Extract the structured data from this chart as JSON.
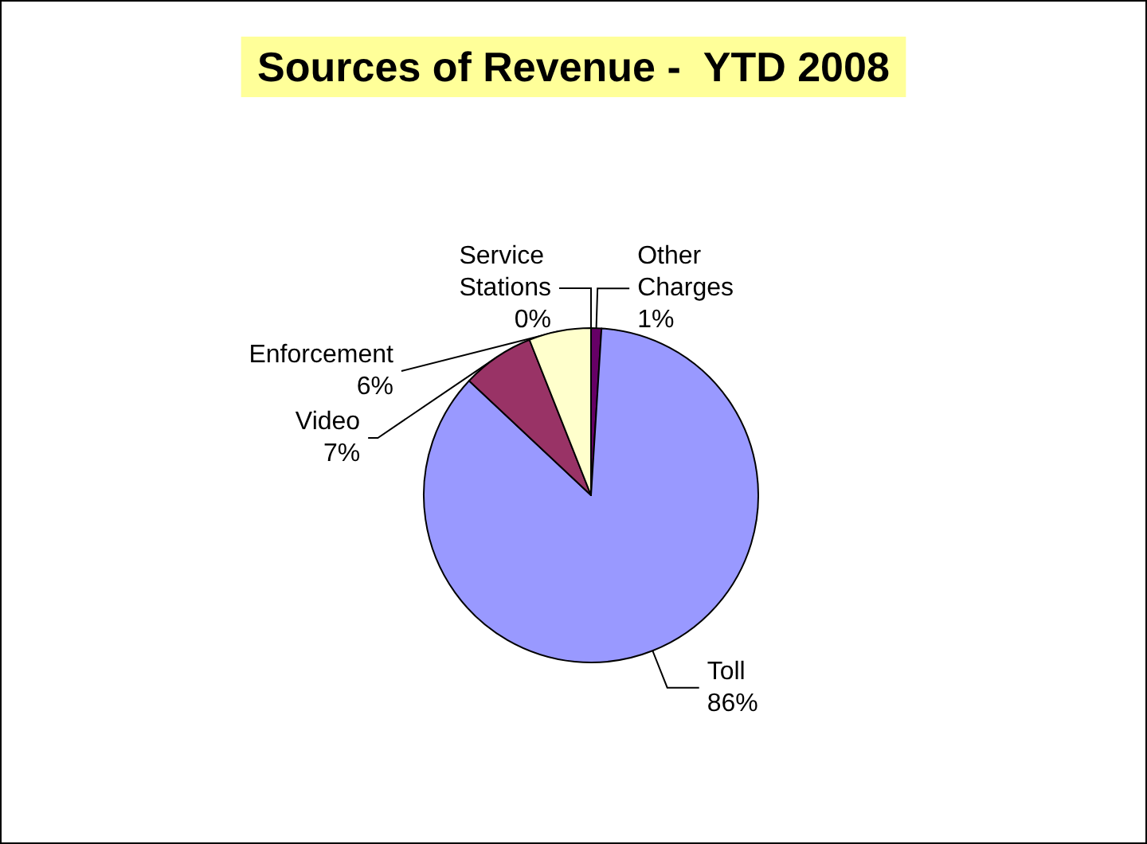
{
  "chart_data": {
    "type": "pie",
    "title": "Sources of Revenue -  YTD 2008",
    "categories": [
      "Other Charges",
      "Toll",
      "Video",
      "Enforcement",
      "Service Stations"
    ],
    "values": [
      1,
      86,
      7,
      6,
      0
    ],
    "value_labels": [
      "1%",
      "86%",
      "7%",
      "6%",
      "0%"
    ],
    "colors": [
      "#660066",
      "#9999ff",
      "#993366",
      "#ffffcc",
      "#ccffff"
    ],
    "legend": false
  }
}
